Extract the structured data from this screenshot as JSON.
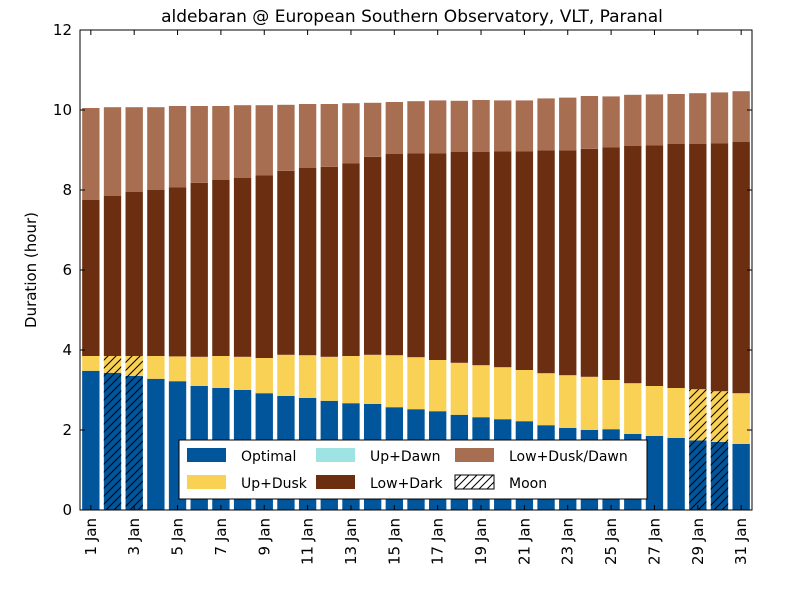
{
  "chart_data": {
    "type": "bar",
    "stacked": true,
    "title": "aldebaran @ European Southern Observatory, VLT, Paranal",
    "xlabel": "",
    "ylabel": "Duration (hour)",
    "ylim": [
      0,
      12
    ],
    "yticks": [
      0,
      2,
      4,
      6,
      8,
      10,
      12
    ],
    "grid": false,
    "legend_position": "lower-center",
    "categories": [
      "1 Jan",
      "2 Jan",
      "3 Jan",
      "4 Jan",
      "5 Jan",
      "6 Jan",
      "7 Jan",
      "8 Jan",
      "9 Jan",
      "10 Jan",
      "11 Jan",
      "12 Jan",
      "13 Jan",
      "14 Jan",
      "15 Jan",
      "16 Jan",
      "17 Jan",
      "18 Jan",
      "19 Jan",
      "20 Jan",
      "21 Jan",
      "22 Jan",
      "23 Jan",
      "24 Jan",
      "25 Jan",
      "26 Jan",
      "27 Jan",
      "28 Jan",
      "29 Jan",
      "30 Jan",
      "31 Jan"
    ],
    "xtick_labels": [
      "1 Jan",
      "3 Jan",
      "5 Jan",
      "7 Jan",
      "9 Jan",
      "11 Jan",
      "13 Jan",
      "15 Jan",
      "17 Jan",
      "19 Jan",
      "21 Jan",
      "23 Jan",
      "25 Jan",
      "27 Jan",
      "29 Jan",
      "31 Jan"
    ],
    "series": [
      {
        "name": "Optimal",
        "color": "#00559b",
        "values": [
          3.48,
          3.43,
          3.35,
          3.28,
          3.22,
          3.1,
          3.05,
          3.0,
          2.92,
          2.85,
          2.8,
          2.73,
          2.67,
          2.65,
          2.57,
          2.52,
          2.47,
          2.38,
          2.32,
          2.27,
          2.22,
          2.12,
          2.05,
          2.0,
          2.02,
          1.9,
          1.85,
          1.8,
          1.74,
          1.7,
          1.65
        ]
      },
      {
        "name": "Up+Dusk",
        "color": "#f9d154",
        "values": [
          0.37,
          0.42,
          0.5,
          0.57,
          0.62,
          0.73,
          0.8,
          0.83,
          0.88,
          1.03,
          1.07,
          1.1,
          1.18,
          1.23,
          1.3,
          1.3,
          1.28,
          1.3,
          1.3,
          1.3,
          1.28,
          1.3,
          1.32,
          1.33,
          1.23,
          1.27,
          1.25,
          1.25,
          1.28,
          1.27,
          1.27
        ]
      },
      {
        "name": "Up+Dawn",
        "color": "#a0e3e3",
        "values": [
          0,
          0,
          0,
          0,
          0,
          0,
          0,
          0,
          0,
          0,
          0,
          0,
          0,
          0,
          0,
          0,
          0,
          0,
          0,
          0,
          0,
          0,
          0,
          0,
          0,
          0,
          0,
          0,
          0,
          0,
          0
        ]
      },
      {
        "name": "Low+Dark",
        "color": "#6b2e10",
        "values": [
          3.9,
          4.0,
          4.1,
          4.15,
          4.23,
          4.35,
          4.4,
          4.47,
          4.57,
          4.6,
          4.68,
          4.75,
          4.82,
          4.95,
          5.03,
          5.1,
          5.17,
          5.27,
          5.33,
          5.4,
          5.47,
          5.57,
          5.62,
          5.7,
          5.82,
          5.93,
          6.02,
          6.1,
          6.13,
          6.2,
          6.28
        ]
      },
      {
        "name": "Low+Dusk/Dawn",
        "color": "#a86e52",
        "values": [
          2.3,
          2.22,
          2.12,
          2.07,
          2.03,
          1.92,
          1.85,
          1.82,
          1.75,
          1.65,
          1.6,
          1.57,
          1.5,
          1.35,
          1.3,
          1.3,
          1.32,
          1.28,
          1.3,
          1.27,
          1.27,
          1.3,
          1.32,
          1.32,
          1.27,
          1.28,
          1.27,
          1.25,
          1.27,
          1.27,
          1.27
        ]
      }
    ],
    "moon": {
      "name": "Moon",
      "days": [
        "2 Jan",
        "3 Jan",
        "29 Jan",
        "30 Jan"
      ]
    }
  }
}
